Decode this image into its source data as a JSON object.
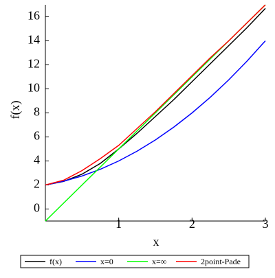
{
  "chart_data": {
    "type": "line",
    "x_label": "x",
    "y_label": "f(x)",
    "x": [
      0,
      0.25,
      0.5,
      0.75,
      1,
      1.25,
      1.5,
      1.75,
      2,
      2.25,
      2.5,
      2.75,
      3
    ],
    "series": [
      {
        "name": "f(x)",
        "color": "#000000",
        "values": [
          2,
          2.3,
          2.9,
          3.8,
          5.0,
          6.3,
          7.7,
          9.1,
          10.6,
          12.1,
          13.6,
          15.1,
          16.7
        ]
      },
      {
        "name": "x=0",
        "color": "#0000ff",
        "values": [
          2,
          2.3125,
          2.75,
          3.3125,
          4,
          4.8125,
          5.75,
          6.8125,
          8,
          9.3125,
          10.75,
          12.3125,
          14
        ]
      },
      {
        "name": "x=∞",
        "color": "#00ff00",
        "values": [
          -1,
          0.5,
          2,
          3.5,
          5,
          6.5,
          8,
          9.5,
          11,
          12.5,
          14,
          15.5,
          17
        ]
      },
      {
        "name": "2point-Pade",
        "color": "#ff0000",
        "values": [
          2,
          2.4,
          3.2,
          4.2,
          5.3,
          6.7,
          8.1,
          9.6,
          11.1,
          12.6,
          14.0,
          15.5,
          17.0
        ]
      }
    ],
    "xlim": [
      0,
      3
    ],
    "xticks": [
      1,
      2,
      3
    ],
    "ylim": [
      -1,
      17
    ],
    "yticks": [
      0,
      2,
      4,
      6,
      8,
      10,
      12,
      14,
      16
    ],
    "legend": "bottom"
  }
}
